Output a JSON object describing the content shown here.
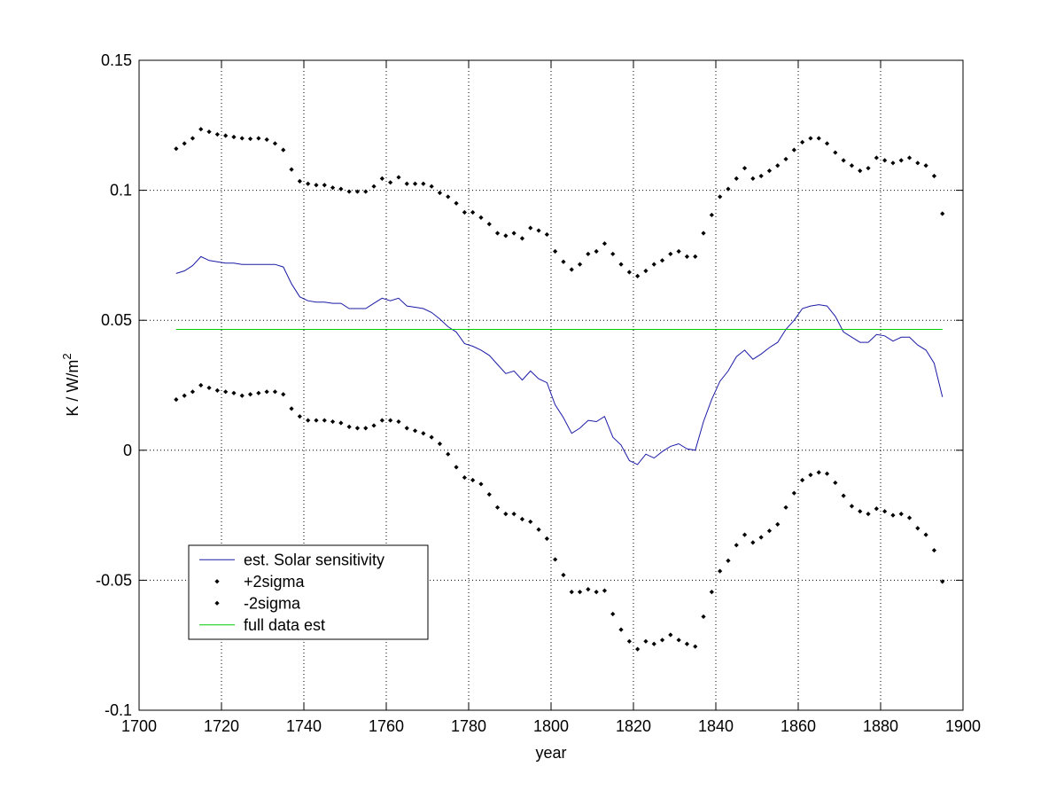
{
  "chart_data": {
    "type": "line",
    "title": "",
    "xlabel": "year",
    "ylabel": {
      "base": "K / W/m",
      "sup": "2"
    },
    "xlim": [
      1700,
      1900
    ],
    "ylim": [
      -0.1,
      0.15
    ],
    "xticks": [
      1700,
      1720,
      1740,
      1760,
      1780,
      1800,
      1820,
      1840,
      1860,
      1880,
      1900
    ],
    "xtick_labels": [
      "1700",
      "1720",
      "1740",
      "1760",
      "1780",
      "1800",
      "1820",
      "1840",
      "1860",
      "1880",
      "1900"
    ],
    "yticks": [
      -0.1,
      -0.05,
      0,
      0.05,
      0.1,
      0.15
    ],
    "ytick_labels": [
      "-0.1",
      "-0.05",
      "0",
      "0.05",
      "0.1",
      "0.15"
    ],
    "grid": true,
    "legend_position": "lower-left",
    "x": [
      1709,
      1711,
      1713,
      1715,
      1717,
      1719,
      1721,
      1723,
      1725,
      1727,
      1729,
      1731,
      1733,
      1735,
      1737,
      1739,
      1741,
      1743,
      1745,
      1747,
      1749,
      1751,
      1753,
      1755,
      1757,
      1759,
      1761,
      1763,
      1765,
      1767,
      1769,
      1771,
      1773,
      1775,
      1777,
      1779,
      1781,
      1783,
      1785,
      1787,
      1789,
      1791,
      1793,
      1795,
      1797,
      1799,
      1801,
      1803,
      1805,
      1807,
      1809,
      1811,
      1813,
      1815,
      1817,
      1819,
      1821,
      1823,
      1825,
      1827,
      1829,
      1831,
      1833,
      1835,
      1837,
      1839,
      1841,
      1843,
      1845,
      1847,
      1849,
      1851,
      1853,
      1855,
      1857,
      1859,
      1861,
      1863,
      1865,
      1867,
      1869,
      1871,
      1873,
      1875,
      1877,
      1879,
      1881,
      1883,
      1885,
      1887,
      1889,
      1891,
      1893,
      1895
    ],
    "series": [
      {
        "name": "est. Solar sensitivity",
        "style": "line",
        "color": "#1a1aa6",
        "values": [
          0.068,
          0.069,
          0.071,
          0.0745,
          0.073,
          0.0725,
          0.072,
          0.072,
          0.0715,
          0.0715,
          0.0715,
          0.0715,
          0.0715,
          0.0705,
          0.064,
          0.059,
          0.0575,
          0.057,
          0.057,
          0.0565,
          0.0565,
          0.0545,
          0.0545,
          0.0545,
          0.0565,
          0.0585,
          0.0575,
          0.0585,
          0.0555,
          0.055,
          0.0545,
          0.053,
          0.0505,
          0.0475,
          0.0455,
          0.041,
          0.04,
          0.0385,
          0.0365,
          0.033,
          0.0295,
          0.0305,
          0.027,
          0.0305,
          0.0275,
          0.026,
          0.0175,
          0.0125,
          0.0065,
          0.0085,
          0.0115,
          0.011,
          0.013,
          0.005,
          0.002,
          -0.004,
          -0.0055,
          -0.0015,
          -0.003,
          -0.0005,
          0.0015,
          0.0025,
          0.0005,
          0.0,
          0.011,
          0.0195,
          0.0265,
          0.0305,
          0.036,
          0.0385,
          0.035,
          0.037,
          0.0395,
          0.0415,
          0.0465,
          0.05,
          0.0545,
          0.0555,
          0.056,
          0.0555,
          0.0515,
          0.0455,
          0.0435,
          0.0415,
          0.0415,
          0.0445,
          0.044,
          0.042,
          0.0435,
          0.0435,
          0.0405,
          0.0385,
          0.0335,
          0.0205
        ]
      },
      {
        "name": "+2sigma",
        "style": "dots",
        "color": "#000000",
        "values": [
          0.116,
          0.118,
          0.12,
          0.1235,
          0.1225,
          0.1215,
          0.121,
          0.1205,
          0.12,
          0.1198,
          0.12,
          0.1195,
          0.118,
          0.1155,
          0.108,
          0.1035,
          0.1025,
          0.102,
          0.102,
          0.101,
          0.1005,
          0.0995,
          0.0995,
          0.0995,
          0.1015,
          0.1045,
          0.103,
          0.105,
          0.1025,
          0.1025,
          0.1025,
          0.1015,
          0.099,
          0.0975,
          0.095,
          0.0915,
          0.0915,
          0.0895,
          0.087,
          0.0835,
          0.0825,
          0.0835,
          0.0815,
          0.0855,
          0.0845,
          0.083,
          0.0765,
          0.0725,
          0.0695,
          0.0715,
          0.0755,
          0.0765,
          0.0795,
          0.0755,
          0.0715,
          0.0685,
          0.067,
          0.069,
          0.0715,
          0.073,
          0.0755,
          0.0765,
          0.0745,
          0.0745,
          0.0835,
          0.0905,
          0.0975,
          0.1005,
          0.1045,
          0.1085,
          0.1045,
          0.1055,
          0.1075,
          0.1095,
          0.112,
          0.1155,
          0.1185,
          0.12,
          0.12,
          0.118,
          0.1145,
          0.1115,
          0.1095,
          0.1075,
          0.1085,
          0.1125,
          0.1115,
          0.1105,
          0.1115,
          0.1125,
          0.1105,
          0.1095,
          0.1055,
          0.091
        ]
      },
      {
        "name": "-2sigma",
        "style": "dots",
        "color": "#000000",
        "values": [
          0.0195,
          0.021,
          0.0225,
          0.025,
          0.024,
          0.023,
          0.0225,
          0.022,
          0.021,
          0.0215,
          0.022,
          0.0225,
          0.0225,
          0.0215,
          0.016,
          0.013,
          0.0115,
          0.0115,
          0.0115,
          0.011,
          0.0105,
          0.009,
          0.0085,
          0.0085,
          0.0095,
          0.0115,
          0.0115,
          0.011,
          0.0085,
          0.0075,
          0.0065,
          0.005,
          0.0025,
          -0.0015,
          -0.0065,
          -0.0105,
          -0.0115,
          -0.013,
          -0.017,
          -0.022,
          -0.0245,
          -0.0245,
          -0.0265,
          -0.0275,
          -0.0305,
          -0.034,
          -0.042,
          -0.048,
          -0.0545,
          -0.0545,
          -0.0535,
          -0.0545,
          -0.054,
          -0.063,
          -0.069,
          -0.0735,
          -0.0765,
          -0.0735,
          -0.0745,
          -0.073,
          -0.071,
          -0.073,
          -0.0745,
          -0.0755,
          -0.064,
          -0.0545,
          -0.0465,
          -0.0425,
          -0.0365,
          -0.0325,
          -0.0355,
          -0.0335,
          -0.031,
          -0.0285,
          -0.022,
          -0.0165,
          -0.0115,
          -0.0095,
          -0.0085,
          -0.009,
          -0.0125,
          -0.0175,
          -0.0215,
          -0.0235,
          -0.0245,
          -0.0225,
          -0.0235,
          -0.025,
          -0.0245,
          -0.026,
          -0.03,
          -0.0325,
          -0.0385,
          -0.0505
        ]
      },
      {
        "name": "full data est",
        "style": "line",
        "color": "#00cc00",
        "x": [
          1709,
          1895
        ],
        "values": [
          0.0465,
          0.0465
        ]
      }
    ]
  }
}
